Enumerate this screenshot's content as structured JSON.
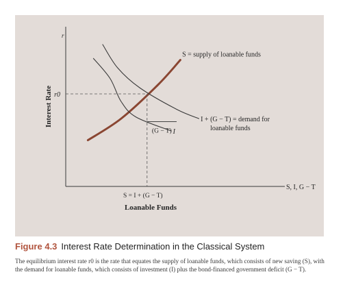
{
  "chart_data": {
    "type": "line",
    "title": "Interest Rate Determination in the Classical System",
    "figure_number": "Figure 4.3",
    "xlabel": "Loanable Funds",
    "ylabel": "Interest Rate",
    "y_axis_symbol": "r",
    "x_axis_symbol": "S, I, G − T",
    "equilibrium": {
      "rate_label": "r0",
      "quantity_label": "S = I + (G − T)"
    },
    "gap_label": "(G − T)",
    "series": [
      {
        "name": "S = supply of loanable funds",
        "color": "#8a4632",
        "points": [
          [
            0.12,
            0.3
          ],
          [
            0.3,
            0.44
          ],
          [
            0.5,
            0.66
          ],
          [
            0.62,
            0.82
          ]
        ]
      },
      {
        "name": "I + (G − T) = demand for loanable funds",
        "color": "#3a3a3a",
        "points": [
          [
            0.2,
            0.92
          ],
          [
            0.28,
            0.77
          ],
          [
            0.4,
            0.64
          ],
          [
            0.6,
            0.5
          ],
          [
            0.72,
            0.44
          ]
        ]
      },
      {
        "name": "I",
        "color": "#3a3a3a",
        "points": [
          [
            0.15,
            0.83
          ],
          [
            0.24,
            0.7
          ],
          [
            0.3,
            0.55
          ],
          [
            0.38,
            0.45
          ],
          [
            0.57,
            0.36
          ]
        ]
      }
    ]
  },
  "caption": {
    "figure_number": "Figure 4.3",
    "title": "Interest Rate Determination in the Classical System",
    "body": "The equilibrium interest rate r0 is the rate that equates the supply of loanable funds, which consists of new saving (S), with the demand for loanable funds, which consists of investment (I) plus the bond-financed government deficit (G − T)."
  }
}
